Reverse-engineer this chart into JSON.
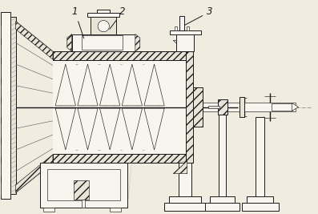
{
  "bg_color": "#f0ece0",
  "lc": "#1a1a1a",
  "label_1": "1",
  "label_2": "2",
  "label_3": "3",
  "figsize": [
    3.97,
    2.67
  ],
  "dpi": 100,
  "xlim": [
    0,
    10
  ],
  "ylim": [
    0,
    6.7
  ]
}
